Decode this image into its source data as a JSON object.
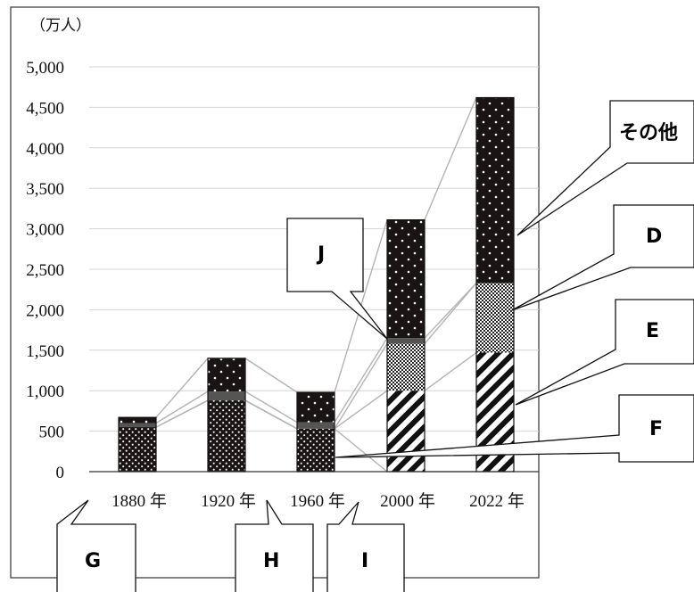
{
  "chart_data": {
    "type": "bar",
    "stacked": true,
    "unit_label": "（万人）",
    "categories": [
      "1880 年",
      "1920 年",
      "1960 年",
      "2000 年",
      "2022 年"
    ],
    "yticks": [
      "0",
      "500",
      "1,000",
      "1,500",
      "2,000",
      "2,500",
      "3,000",
      "3,500",
      "4,000",
      "4,500",
      "5,000"
    ],
    "ylim": [
      0,
      5000
    ],
    "grid": true,
    "series": [
      {
        "key": "F",
        "pattern": "dots-on-black",
        "values": [
          550,
          880,
          530,
          0,
          0
        ]
      },
      {
        "key": "E",
        "pattern": "diagonal-stripes",
        "values": [
          0,
          0,
          0,
          1000,
          1470
        ]
      },
      {
        "key": "D",
        "pattern": "checker",
        "values": [
          0,
          0,
          0,
          580,
          860
        ]
      },
      {
        "key": "dark-band",
        "pattern": "dark-gray",
        "values": [
          50,
          110,
          80,
          70,
          0
        ]
      },
      {
        "key": "その他",
        "pattern": "sparse-dots-on-black",
        "values": [
          70,
          410,
          370,
          1460,
          2290
        ]
      }
    ],
    "callouts": [
      "その他",
      "D",
      "E",
      "F",
      "J",
      "G",
      "H",
      "I"
    ]
  },
  "colors": {
    "bar": "#1a1414",
    "band": "#555555",
    "grid": "#d4d4d4",
    "connector": "#b3b3b3",
    "frame": "#333333"
  }
}
